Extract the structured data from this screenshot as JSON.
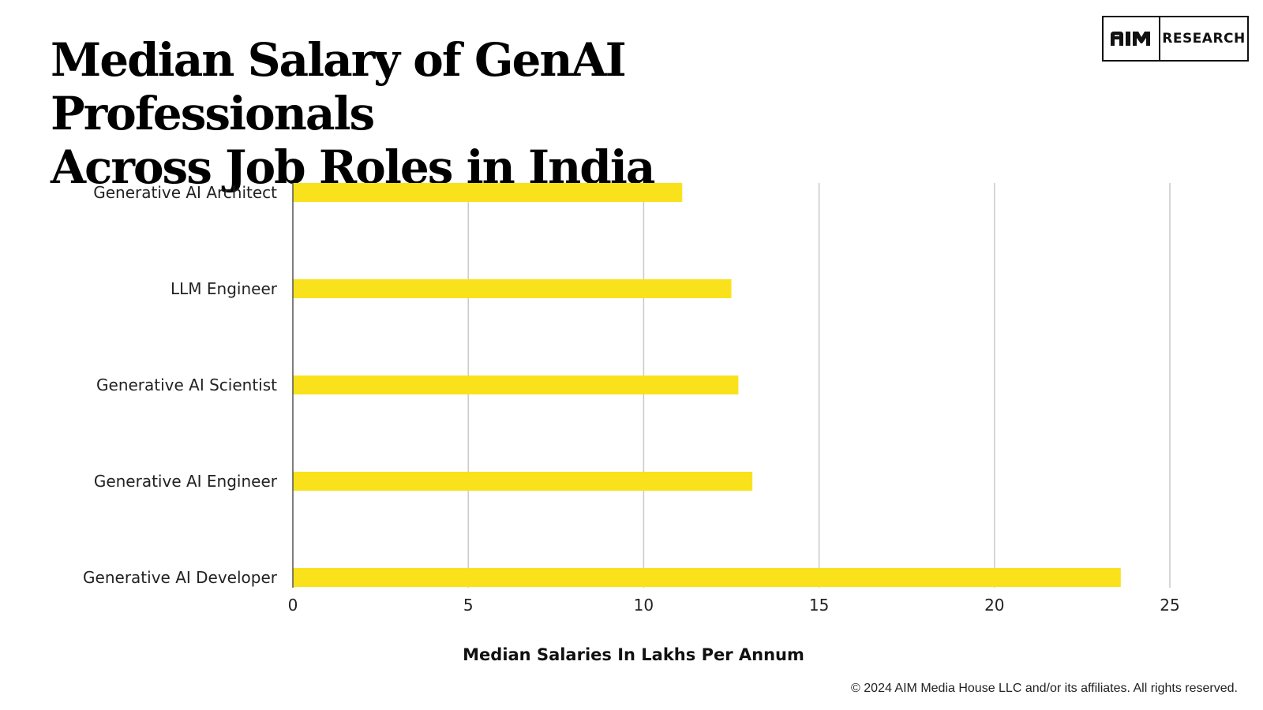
{
  "title": {
    "line1": "Median Salary of GenAI Professionals",
    "line2": "Across Job Roles in India"
  },
  "logo": {
    "mark": "AIM",
    "text": "RESEARCH"
  },
  "chart_data": {
    "type": "bar",
    "orientation": "horizontal",
    "categories": [
      "Generative AI Architect",
      "LLM Engineer",
      "Generative AI Scientist",
      "Generative AI Engineer",
      "Generative AI Developer"
    ],
    "values": [
      11.1,
      12.5,
      12.7,
      13.1,
      23.6
    ],
    "xlabel": "Median Salaries In Lakhs Per Annum",
    "ylabel": "",
    "xlim": [
      0,
      25
    ],
    "xticks": [
      0,
      5,
      10,
      15,
      20,
      25
    ],
    "grid": true,
    "bar_color": "#F9E21B",
    "grid_color": "#C9C9C9"
  },
  "footer": {
    "copyright": "© 2024 AIM Media House LLC and/or its affiliates. All rights reserved."
  }
}
